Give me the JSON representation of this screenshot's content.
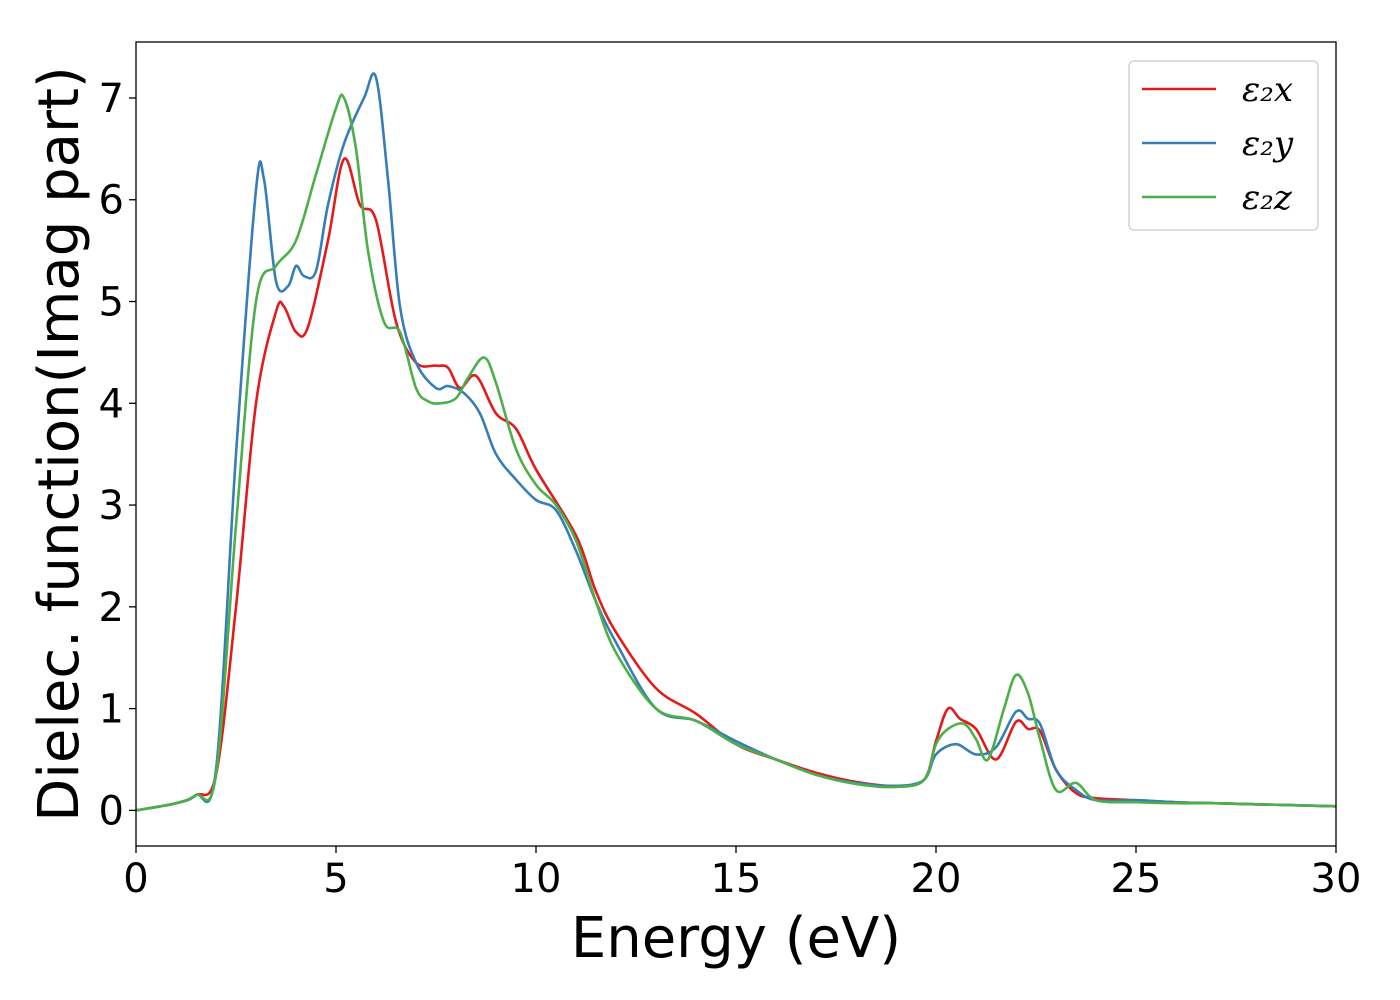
{
  "chart_data": {
    "type": "line",
    "xlabel": "Energy (eV)",
    "ylabel": "Dielec. function(Imag part)",
    "xlim": [
      0,
      30
    ],
    "ylim": [
      -0.35,
      7.55
    ],
    "xticks": [
      0,
      5,
      10,
      15,
      20,
      25,
      30
    ],
    "yticks": [
      0,
      1,
      2,
      3,
      4,
      5,
      6,
      7
    ],
    "grid": false,
    "legend_position": "top-right",
    "series": [
      {
        "name": "ε₂x",
        "color": "#e41a1c",
        "x": [
          0,
          1,
          1.5,
          2,
          2.5,
          3,
          3.5,
          3.7,
          4,
          4.3,
          4.8,
          5.2,
          5.6,
          6,
          6.5,
          7,
          7.5,
          7.8,
          8.1,
          8.5,
          9,
          9.5,
          10,
          11,
          11.5,
          12,
          13,
          14,
          15,
          16,
          17,
          18,
          19,
          19.7,
          20,
          20.3,
          20.6,
          21,
          21.5,
          22,
          22.3,
          22.6,
          23,
          23.5,
          24,
          25,
          26,
          27,
          28,
          30
        ],
        "y": [
          0,
          0.07,
          0.15,
          0.35,
          2.0,
          4.0,
          4.9,
          4.95,
          4.7,
          4.75,
          5.6,
          6.4,
          5.95,
          5.8,
          4.8,
          4.4,
          4.37,
          4.35,
          4.15,
          4.27,
          3.9,
          3.75,
          3.35,
          2.7,
          2.15,
          1.75,
          1.2,
          0.95,
          0.65,
          0.5,
          0.37,
          0.28,
          0.24,
          0.3,
          0.68,
          1.0,
          0.9,
          0.8,
          0.5,
          0.87,
          0.8,
          0.78,
          0.4,
          0.17,
          0.12,
          0.1,
          0.08,
          0.07,
          0.06,
          0.04
        ]
      },
      {
        "name": "ε₂y",
        "color": "#377eb8",
        "x": [
          0,
          1,
          1.5,
          2,
          2.5,
          3,
          3.2,
          3.5,
          3.8,
          4,
          4.2,
          4.5,
          4.8,
          5.2,
          5.7,
          6,
          6.3,
          6.6,
          7,
          7.5,
          7.8,
          8.2,
          8.6,
          9,
          9.5,
          10,
          10.5,
          11,
          11.5,
          12,
          13,
          14,
          15,
          16,
          17,
          18,
          19,
          19.7,
          20,
          20.5,
          21,
          21.5,
          22,
          22.3,
          22.6,
          23,
          23.5,
          24,
          25,
          26,
          27,
          28,
          30
        ],
        "y": [
          0,
          0.07,
          0.15,
          0.4,
          3.5,
          6.1,
          6.2,
          5.2,
          5.15,
          5.35,
          5.25,
          5.3,
          5.95,
          6.55,
          7.0,
          7.2,
          6.2,
          4.95,
          4.4,
          4.15,
          4.17,
          4.1,
          3.9,
          3.5,
          3.25,
          3.05,
          2.95,
          2.55,
          2.05,
          1.65,
          1.0,
          0.88,
          0.68,
          0.5,
          0.35,
          0.27,
          0.24,
          0.3,
          0.55,
          0.65,
          0.55,
          0.62,
          0.97,
          0.9,
          0.85,
          0.4,
          0.2,
          0.1,
          0.1,
          0.08,
          0.07,
          0.06,
          0.04
        ]
      },
      {
        "name": "ε₂z",
        "color": "#4daf4a",
        "x": [
          0,
          1,
          1.5,
          2,
          2.5,
          3,
          3.5,
          4,
          4.5,
          5,
          5.2,
          5.5,
          5.8,
          6.2,
          6.6,
          7,
          7.3,
          7.6,
          8,
          8.3,
          8.7,
          9,
          9.5,
          10,
          10.5,
          11,
          11.5,
          12,
          13,
          14,
          15,
          16,
          17,
          18,
          19,
          19.7,
          20,
          20.3,
          20.7,
          21,
          21.3,
          21.7,
          22,
          22.3,
          22.6,
          23,
          23.5,
          24,
          25,
          26,
          27,
          28,
          30
        ],
        "y": [
          0,
          0.07,
          0.15,
          0.35,
          2.8,
          5.0,
          5.35,
          5.6,
          6.25,
          6.9,
          7.0,
          6.5,
          5.5,
          4.8,
          4.7,
          4.15,
          4.02,
          4.0,
          4.05,
          4.25,
          4.45,
          4.2,
          3.55,
          3.2,
          3.0,
          2.65,
          2.05,
          1.55,
          1.0,
          0.88,
          0.65,
          0.5,
          0.35,
          0.26,
          0.23,
          0.3,
          0.65,
          0.8,
          0.85,
          0.7,
          0.5,
          1.0,
          1.33,
          1.15,
          0.7,
          0.2,
          0.27,
          0.1,
          0.08,
          0.07,
          0.07,
          0.06,
          0.04
        ]
      }
    ]
  }
}
